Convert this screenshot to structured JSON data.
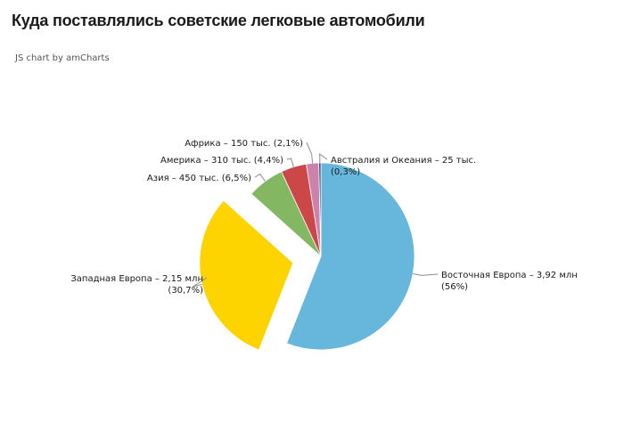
{
  "header": {
    "title": "Куда поставлялись советские легковые автомобили",
    "credit": "JS chart by amCharts"
  },
  "chart_data": {
    "type": "pie",
    "title": "Куда поставлялись советские легковые автомобили",
    "slices": [
      {
        "category": "Восточная Европа",
        "value_label": "3,92 млн",
        "value": 3920000,
        "percent_label": "(56%)",
        "percent": 56.0,
        "color": "#67b7dc",
        "pulled_out": false
      },
      {
        "category": "Западная Европа",
        "value_label": "2,15 млн",
        "value": 2150000,
        "percent_label": "(30,7%)",
        "percent": 30.7,
        "color": "#fdd400",
        "pulled_out": true
      },
      {
        "category": "Азия",
        "value_label": "450 тыс.",
        "value": 450000,
        "percent_label": "(6,5%)",
        "percent": 6.5,
        "color": "#84b761",
        "pulled_out": false
      },
      {
        "category": "Америка",
        "value_label": "310 тыс.",
        "value": 310000,
        "percent_label": "(4,4%)",
        "percent": 4.4,
        "color": "#cc4748",
        "pulled_out": false
      },
      {
        "category": "Африка",
        "value_label": "150 тыс.",
        "value": 150000,
        "percent_label": "(2,1%)",
        "percent": 2.1,
        "color": "#cd82ad",
        "pulled_out": false
      },
      {
        "category": "Австралия и Океания",
        "value_label": "25 тыс.",
        "value": 25000,
        "percent_label": "(0,3%)",
        "percent": 0.3,
        "color": "#2f4074",
        "pulled_out": false
      }
    ]
  }
}
